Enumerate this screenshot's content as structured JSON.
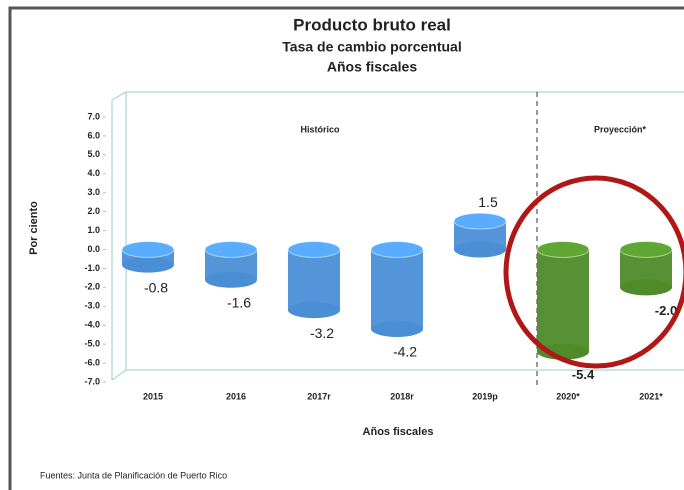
{
  "chart_data": {
    "type": "bar",
    "title": "Producto bruto real",
    "subtitle": "Tasa  de cambio porcentual",
    "subtitle2": "Años fiscales",
    "y_label": "Por ciento",
    "x_label": "Años fiscales",
    "annotations": [
      "Histórico",
      "Proyección*"
    ],
    "source": "Fuentes: Junta de Planificación de Puerto Rico",
    "categories": [
      "2015",
      "2016",
      "2017r",
      "2018r",
      "2019p",
      "2020*",
      "2021*"
    ],
    "values": [
      -0.8,
      -1.6,
      -3.2,
      -4.2,
      1.5,
      -5.4,
      -2.0
    ],
    "value_labels": [
      "-0.8",
      "-1.6",
      "-3.2",
      "-4.2",
      "1.5",
      "-5.4",
      "-2.0"
    ],
    "colors": [
      "#4a8fd6",
      "#4a8fd6",
      "#4a8fd6",
      "#4a8fd6",
      "#4a8fd6",
      "#4f8a2b",
      "#4f8a2b"
    ],
    "ylim": [
      -7,
      7
    ],
    "yticks": [
      {
        "value": 7,
        "label": "7.0"
      },
      {
        "value": 6,
        "label": "6.0"
      },
      {
        "value": 5,
        "label": "5.0"
      },
      {
        "value": 4,
        "label": "4.0"
      },
      {
        "value": 3,
        "label": "3.0"
      },
      {
        "value": 2,
        "label": "2.0"
      },
      {
        "value": 1,
        "label": "1.0"
      },
      {
        "value": 0,
        "label": "0.0"
      },
      {
        "value": -1,
        "label": "-1.0"
      },
      {
        "value": -2,
        "label": "-2.0"
      },
      {
        "value": -3,
        "label": "-3.0"
      },
      {
        "value": -4,
        "label": "-4.0"
      },
      {
        "value": -5,
        "label": "-5.0"
      },
      {
        "value": -6,
        "label": "-6.0"
      },
      {
        "value": -7,
        "label": "-7.0"
      }
    ],
    "grid": false
  }
}
